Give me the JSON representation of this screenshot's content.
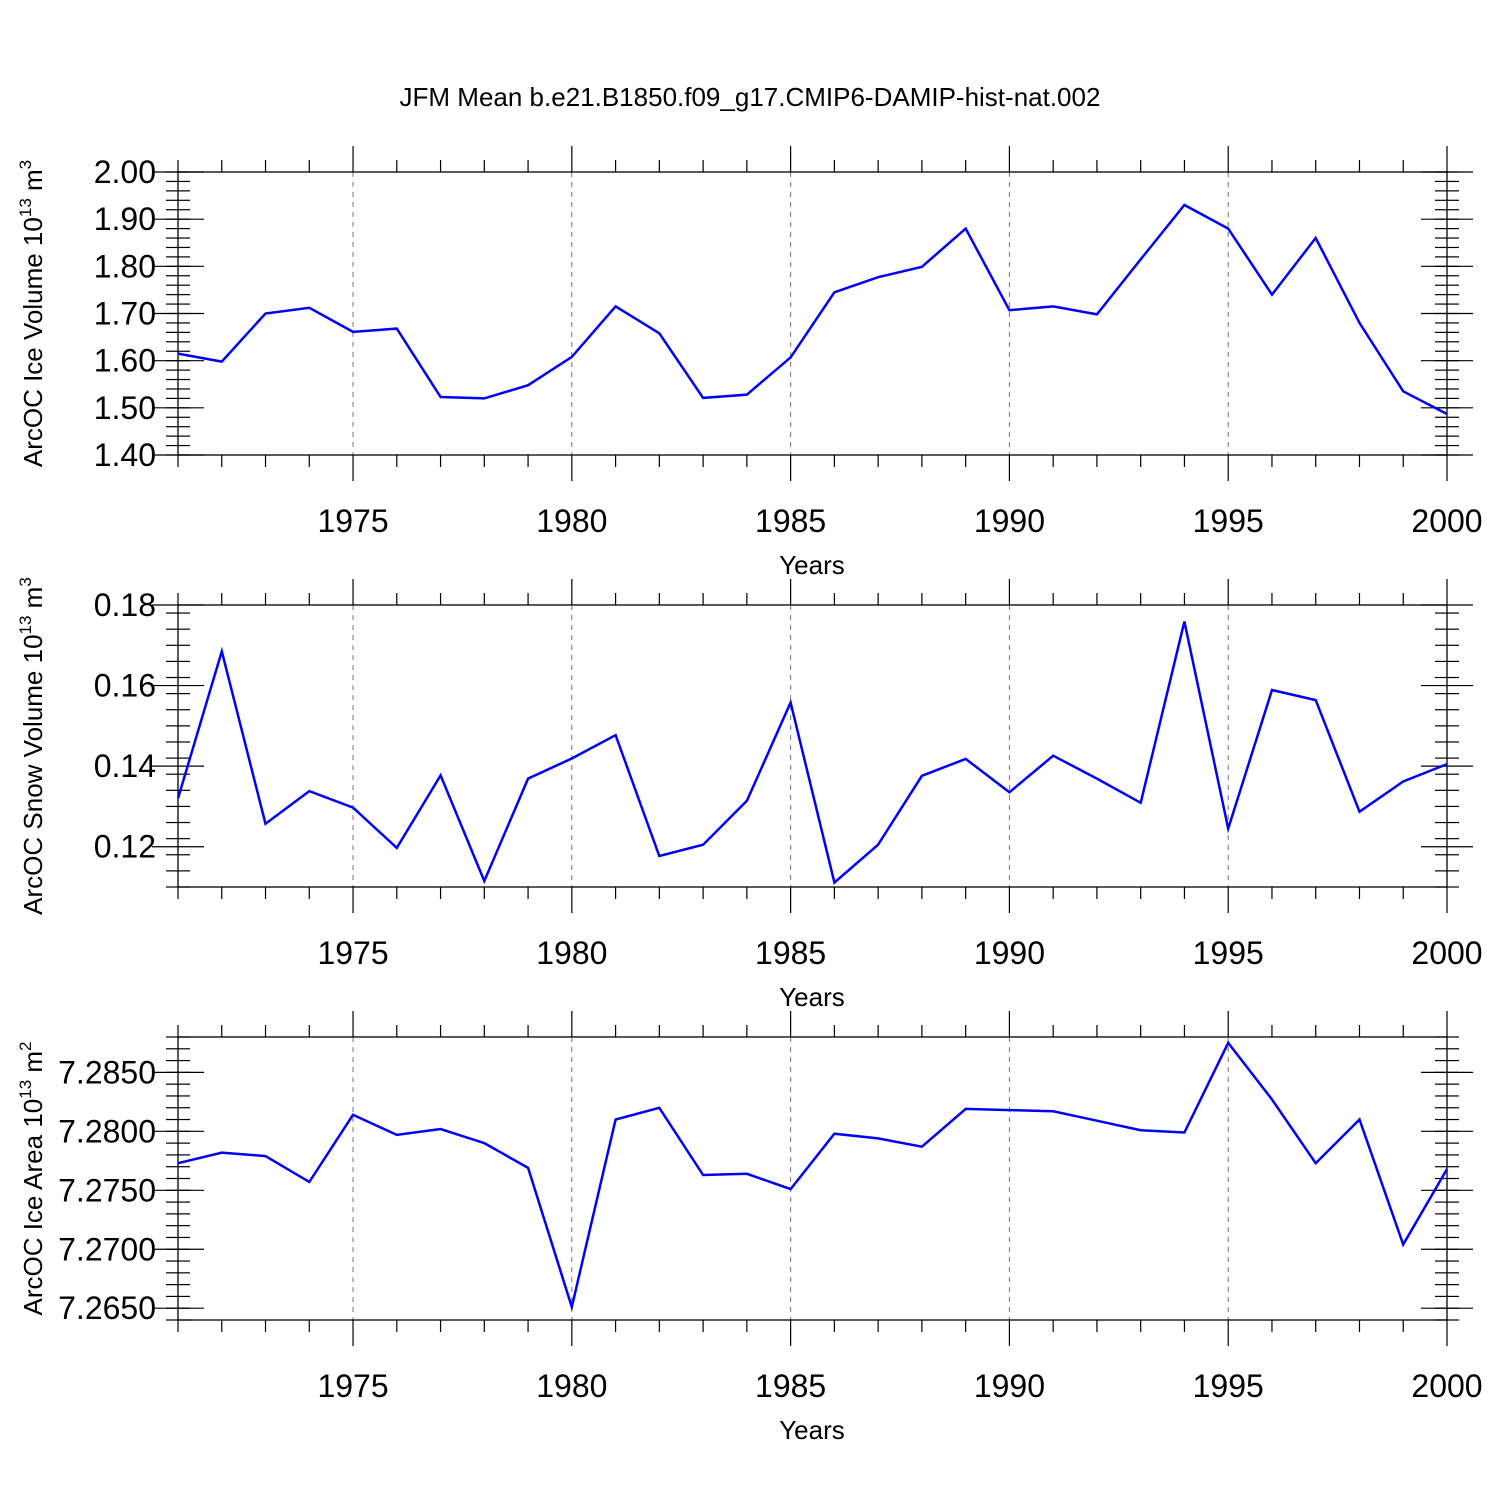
{
  "title": "JFM Mean b.e21.B1850.f09_g17.CMIP6-DAMIP-hist-nat.002",
  "chart_data": [
    {
      "type": "line",
      "title": "",
      "xlabel": "Years",
      "ylabel": "ArcOC Ice Volume 10",
      "ylabel_sup1": "13",
      "ylabel_mid": " m",
      "ylabel_sup2": "3",
      "xlim": [
        1971,
        2000
      ],
      "ylim": [
        1.4,
        2.0
      ],
      "x_ticks": [
        1975,
        1980,
        1985,
        1990,
        1995,
        2000
      ],
      "x_tick_labels": [
        "1975",
        "1980",
        "1985",
        "1990",
        "1995",
        "2000"
      ],
      "y_ticks": [
        1.4,
        1.5,
        1.6,
        1.7,
        1.8,
        1.9,
        2.0
      ],
      "y_tick_labels": [
        "1.40",
        "1.50",
        "1.60",
        "1.70",
        "1.80",
        "1.90",
        "2.00"
      ],
      "y_minor_step": 0.02,
      "grid": "dashed vertical lines at x major ticks",
      "color": "#0000ff",
      "x": [
        1971,
        1972,
        1973,
        1974,
        1975,
        1976,
        1977,
        1978,
        1979,
        1980,
        1981,
        1982,
        1983,
        1984,
        1985,
        1986,
        1987,
        1988,
        1989,
        1990,
        1991,
        1992,
        1993,
        1994,
        1995,
        1996,
        1997,
        1998,
        1999,
        2000
      ],
      "y": [
        1.615,
        1.598,
        1.7,
        1.712,
        1.661,
        1.668,
        1.523,
        1.52,
        1.548,
        1.608,
        1.715,
        1.658,
        1.521,
        1.528,
        1.607,
        1.745,
        1.777,
        1.799,
        1.88,
        1.707,
        1.715,
        1.698,
        1.815,
        1.93,
        1.88,
        1.74,
        1.86,
        1.68,
        1.535,
        1.487
      ]
    },
    {
      "type": "line",
      "title": "",
      "xlabel": "Years",
      "ylabel": "ArcOC Snow Volume 10",
      "ylabel_sup1": "13",
      "ylabel_mid": " m",
      "ylabel_sup2": "3",
      "xlim": [
        1971,
        2000
      ],
      "ylim": [
        0.11,
        0.18
      ],
      "x_ticks": [
        1975,
        1980,
        1985,
        1990,
        1995,
        2000
      ],
      "x_tick_labels": [
        "1975",
        "1980",
        "1985",
        "1990",
        "1995",
        "2000"
      ],
      "y_ticks": [
        0.12,
        0.14,
        0.16,
        0.18
      ],
      "y_tick_labels": [
        "0.12",
        "0.14",
        "0.16",
        "0.18"
      ],
      "y_minor_step": 0.004,
      "grid": "dashed vertical lines at x major ticks",
      "color": "#0000ff",
      "x": [
        1971,
        1972,
        1973,
        1974,
        1975,
        1976,
        1977,
        1978,
        1979,
        1980,
        1981,
        1982,
        1983,
        1984,
        1985,
        1986,
        1987,
        1988,
        1989,
        1990,
        1991,
        1992,
        1993,
        1994,
        1995,
        1996,
        1997,
        1998,
        1999,
        2000
      ],
      "y": [
        0.132,
        0.1685,
        0.1257,
        0.1338,
        0.1297,
        0.1197,
        0.1377,
        0.1115,
        0.1369,
        0.1419,
        0.1477,
        0.1177,
        0.1205,
        0.1314,
        0.1558,
        0.1111,
        0.1205,
        0.1376,
        0.1418,
        0.1335,
        0.1426,
        0.1369,
        0.1309,
        0.1759,
        0.1245,
        0.1589,
        0.1564,
        0.1287,
        0.1362,
        0.1405
      ]
    },
    {
      "type": "line",
      "title": "",
      "xlabel": "Years",
      "ylabel": "ArcOC Ice Area 10",
      "ylabel_sup1": "13",
      "ylabel_mid": " m",
      "ylabel_sup2": "2",
      "xlim": [
        1971,
        2000
      ],
      "ylim": [
        7.264,
        7.288
      ],
      "x_ticks": [
        1975,
        1980,
        1985,
        1990,
        1995,
        2000
      ],
      "x_tick_labels": [
        "1975",
        "1980",
        "1985",
        "1990",
        "1995",
        "2000"
      ],
      "y_ticks": [
        7.265,
        7.27,
        7.275,
        7.28,
        7.285
      ],
      "y_tick_labels": [
        "7.2650",
        "7.2700",
        "7.2750",
        "7.2800",
        "7.2850"
      ],
      "y_minor_step": 0.001,
      "grid": "dashed vertical lines at x major ticks",
      "color": "#0000ff",
      "x": [
        1971,
        1972,
        1973,
        1974,
        1975,
        1976,
        1977,
        1978,
        1979,
        1980,
        1981,
        1982,
        1983,
        1984,
        1985,
        1986,
        1987,
        1988,
        1989,
        1990,
        1991,
        1992,
        1993,
        1994,
        1995,
        1996,
        1997,
        1998,
        1999,
        2000
      ],
      "y": [
        7.2773,
        7.2782,
        7.2779,
        7.2757,
        7.2814,
        7.2797,
        7.2802,
        7.279,
        7.2769,
        7.2651,
        7.281,
        7.282,
        7.2763,
        7.2764,
        7.2751,
        7.2798,
        7.2794,
        7.2787,
        7.2819,
        7.2818,
        7.2817,
        7.2809,
        7.2801,
        7.2799,
        7.2875,
        7.2827,
        7.2773,
        7.281,
        7.2704,
        7.2768
      ]
    }
  ]
}
